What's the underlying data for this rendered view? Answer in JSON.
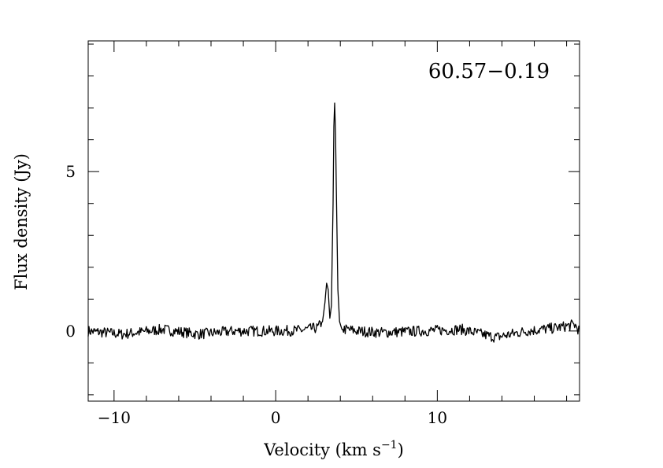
{
  "chart_data": {
    "type": "line",
    "annotation": "60.57−0.19",
    "xlabel": "Velocity (km s",
    "xlabel_sup": "−1",
    "xlabel_tail": ")",
    "ylabel": "Flux density (Jy)",
    "xlim": [
      -11.6,
      18.8
    ],
    "ylim": [
      -2.2,
      9.1
    ],
    "x_major_ticks": [
      -10,
      0,
      10
    ],
    "x_tick_labels": [
      "−10",
      "0",
      "10"
    ],
    "y_major_ticks": [
      0,
      5
    ],
    "y_tick_labels": [
      "0",
      "5"
    ],
    "grid": false,
    "legend": "none",
    "line_color": "#000000",
    "series": [
      {
        "x": [
          -11.6,
          -9.5,
          -7.0,
          -4.8,
          -2.5,
          0.0,
          1.5,
          2.6,
          2.9,
          3.05,
          3.15,
          3.25,
          3.35,
          3.45,
          3.55,
          3.62,
          3.68,
          3.75,
          3.85,
          3.95,
          4.1,
          4.4,
          5.0,
          6.5,
          9.0,
          11.5,
          13.6,
          15.5,
          17.4,
          18.5,
          18.8
        ],
        "y": [
          0.0,
          -0.1,
          0.05,
          -0.1,
          0.0,
          0.0,
          0.02,
          0.1,
          0.3,
          0.9,
          1.5,
          1.3,
          0.4,
          0.8,
          4.0,
          7.4,
          6.9,
          4.5,
          1.3,
          0.3,
          0.05,
          0.05,
          0.0,
          -0.05,
          0.0,
          0.05,
          -0.2,
          0.0,
          0.1,
          0.2,
          0.0
        ]
      }
    ]
  }
}
